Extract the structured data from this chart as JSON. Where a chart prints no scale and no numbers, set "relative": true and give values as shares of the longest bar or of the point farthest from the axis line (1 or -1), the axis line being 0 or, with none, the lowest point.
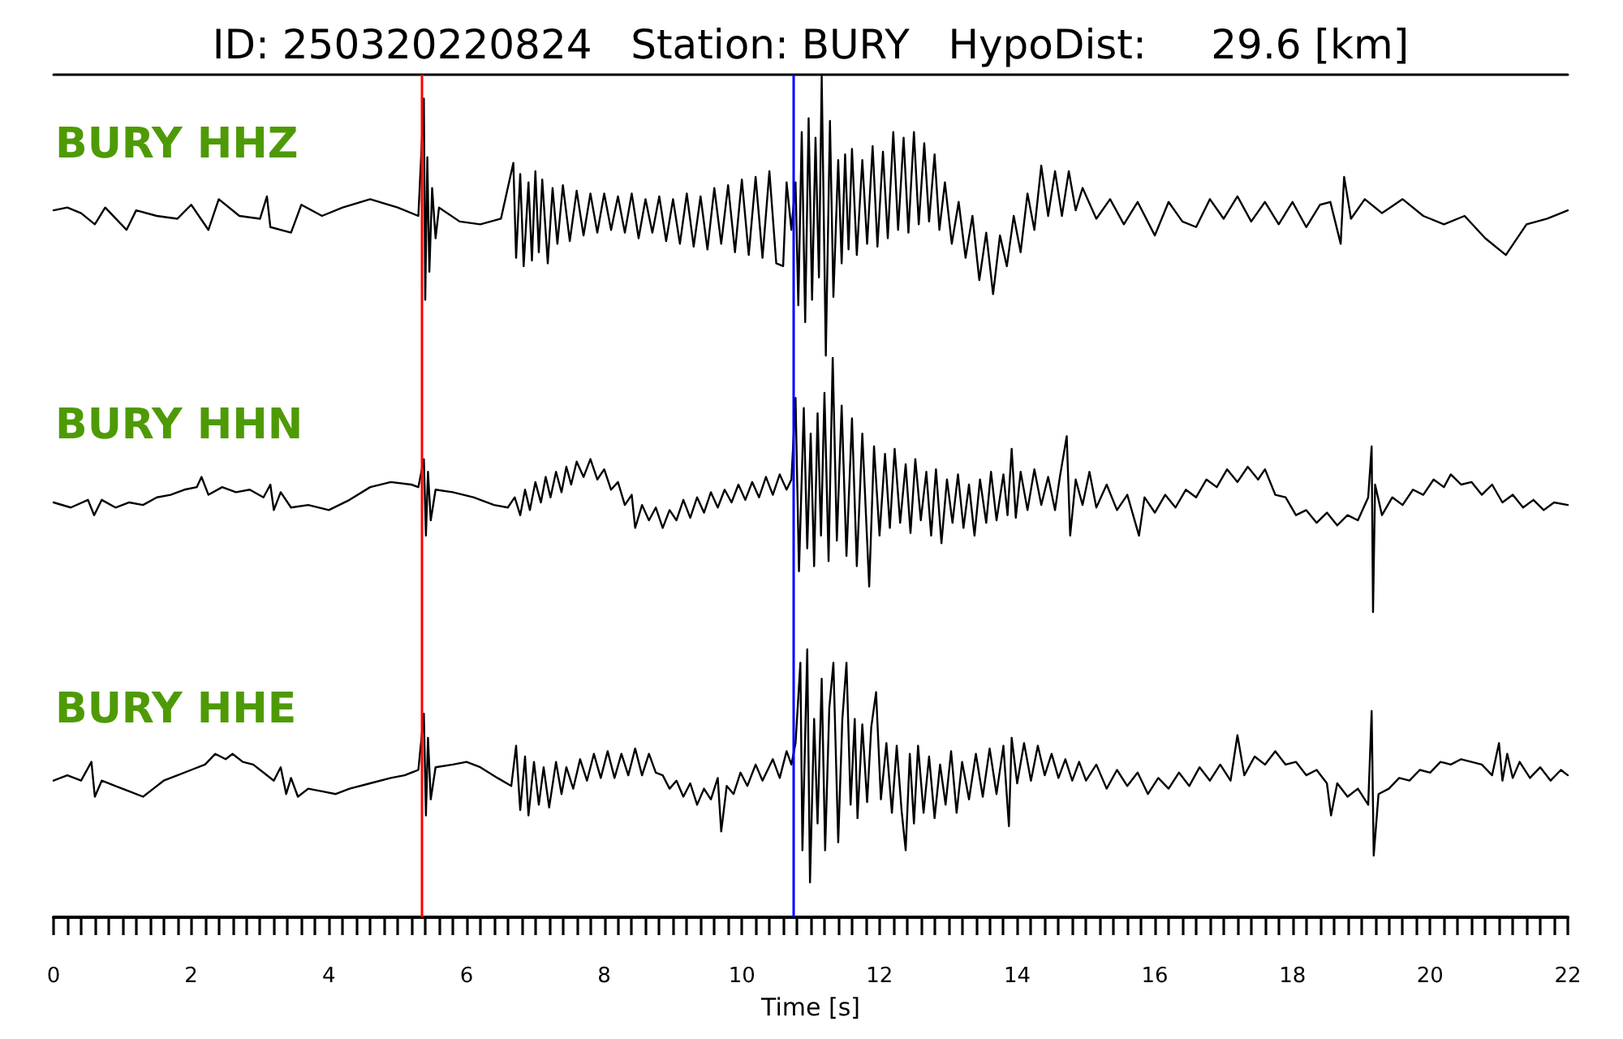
{
  "chart_data": [
    {
      "type": "line",
      "title": "ID: 250320220824   Station: BURY   HypoDist:     29.6 [km]",
      "relative": true,
      "xlim": [
        0,
        22
      ],
      "tick_labels": false,
      "marker": "none",
      "ref_lines": [
        {
          "axis": "x",
          "value": 5.35,
          "color": "#ff0000"
        },
        {
          "axis": "x",
          "value": 10.75,
          "color": "#0000ff"
        }
      ],
      "series": [
        {
          "name": "BURY HHZ",
          "color": "#000000",
          "x": [
            0,
            0.2,
            0.4,
            0.6,
            0.75,
            1.06,
            1.2,
            1.5,
            1.8,
            2,
            2.25,
            2.4,
            2.7,
            3,
            3.1,
            3.15,
            3.45,
            3.6,
            3.9,
            4.2,
            4.6,
            5,
            5.3,
            5.38,
            5.4,
            5.43,
            5.46,
            5.5,
            5.55,
            5.6,
            5.9,
            6.2,
            6.5,
            6.68,
            6.72,
            6.78,
            6.83,
            6.9,
            6.95,
            7,
            7.05,
            7.1,
            7.18,
            7.25,
            7.32,
            7.4,
            7.5,
            7.6,
            7.7,
            7.8,
            7.9,
            8,
            8.1,
            8.2,
            8.3,
            8.4,
            8.5,
            8.6,
            8.7,
            8.8,
            8.9,
            9,
            9.1,
            9.2,
            9.3,
            9.4,
            9.5,
            9.6,
            9.7,
            9.8,
            9.9,
            10,
            10.1,
            10.2,
            10.3,
            10.4,
            10.5,
            10.6,
            10.65,
            10.72,
            10.78,
            10.82,
            10.87,
            10.92,
            10.97,
            11.02,
            11.07,
            11.12,
            11.16,
            11.22,
            11.28,
            11.33,
            11.4,
            11.45,
            11.5,
            11.55,
            11.6,
            11.67,
            11.75,
            11.82,
            11.9,
            11.97,
            12.05,
            12.12,
            12.2,
            12.27,
            12.35,
            12.42,
            12.5,
            12.57,
            12.65,
            12.72,
            12.8,
            12.87,
            12.95,
            13.05,
            13.15,
            13.25,
            13.35,
            13.45,
            13.55,
            13.65,
            13.75,
            13.85,
            13.95,
            14.05,
            14.15,
            14.25,
            14.35,
            14.45,
            14.55,
            14.65,
            14.75,
            14.85,
            14.95,
            15.15,
            15.35,
            15.55,
            15.75,
            16,
            16.2,
            16.4,
            16.6,
            16.8,
            17,
            17.2,
            17.4,
            17.6,
            17.8,
            18,
            18.2,
            18.4,
            18.55,
            18.7,
            18.75,
            18.85,
            19.05,
            19.3,
            19.6,
            19.9,
            20.2,
            20.5,
            20.8,
            21.1,
            21.4,
            21.7,
            22
          ],
          "values": [
            0.52,
            0.53,
            0.51,
            0.47,
            0.53,
            0.45,
            0.52,
            0.5,
            0.49,
            0.54,
            0.45,
            0.56,
            0.5,
            0.49,
            0.57,
            0.46,
            0.44,
            0.54,
            0.5,
            0.53,
            0.56,
            0.53,
            0.5,
            0.92,
            0.2,
            0.71,
            0.3,
            0.6,
            0.42,
            0.53,
            0.48,
            0.47,
            0.49,
            0.69,
            0.35,
            0.65,
            0.32,
            0.62,
            0.34,
            0.66,
            0.37,
            0.63,
            0.33,
            0.6,
            0.4,
            0.61,
            0.41,
            0.59,
            0.43,
            0.58,
            0.44,
            0.58,
            0.45,
            0.57,
            0.44,
            0.58,
            0.42,
            0.56,
            0.44,
            0.57,
            0.41,
            0.56,
            0.4,
            0.58,
            0.39,
            0.57,
            0.38,
            0.6,
            0.4,
            0.61,
            0.37,
            0.63,
            0.36,
            0.64,
            0.35,
            0.66,
            0.33,
            0.32,
            0.62,
            0.45,
            0.62,
            0.18,
            0.8,
            0.12,
            0.85,
            0.2,
            0.78,
            0.28,
            1,
            0,
            0.84,
            0.21,
            0.7,
            0.33,
            0.72,
            0.38,
            0.74,
            0.36,
            0.7,
            0.4,
            0.75,
            0.39,
            0.73,
            0.42,
            0.8,
            0.45,
            0.78,
            0.44,
            0.8,
            0.47,
            0.76,
            0.48,
            0.72,
            0.45,
            0.62,
            0.4,
            0.55,
            0.35,
            0.5,
            0.27,
            0.44,
            0.22,
            0.43,
            0.32,
            0.5,
            0.37,
            0.58,
            0.45,
            0.68,
            0.5,
            0.66,
            0.5,
            0.66,
            0.52,
            0.6,
            0.49,
            0.56,
            0.47,
            0.55,
            0.43,
            0.55,
            0.48,
            0.46,
            0.56,
            0.49,
            0.57,
            0.48,
            0.55,
            0.47,
            0.55,
            0.46,
            0.54,
            0.55,
            0.4,
            0.64,
            0.49,
            0.56,
            0.51,
            0.56,
            0.5,
            0.47,
            0.5,
            0.42,
            0.36,
            0.47,
            0.49,
            0.52
          ]
        }
      ]
    },
    {
      "type": "line",
      "relative": true,
      "xlim": [
        0,
        22
      ],
      "tick_labels": false,
      "marker": "none",
      "ref_lines": [
        {
          "axis": "x",
          "value": 5.35,
          "color": "#ff0000"
        },
        {
          "axis": "x",
          "value": 10.75,
          "color": "#0000ff"
        }
      ],
      "series": [
        {
          "name": "BURY HHN",
          "color": "#000000",
          "x": [
            0,
            0.25,
            0.5,
            0.59,
            0.7,
            0.9,
            1.1,
            1.3,
            1.5,
            1.7,
            1.9,
            2.08,
            2.15,
            2.25,
            2.45,
            2.65,
            2.85,
            3.05,
            3.15,
            3.2,
            3.3,
            3.45,
            3.7,
            4,
            4.3,
            4.6,
            4.9,
            5.2,
            5.3,
            5.38,
            5.41,
            5.44,
            5.48,
            5.55,
            5.8,
            6.1,
            6.4,
            6.6,
            6.7,
            6.78,
            6.85,
            6.92,
            7,
            7.08,
            7.15,
            7.22,
            7.3,
            7.38,
            7.45,
            7.52,
            7.6,
            7.7,
            7.8,
            7.9,
            8,
            8.1,
            8.2,
            8.3,
            8.4,
            8.45,
            8.55,
            8.65,
            8.75,
            8.85,
            8.95,
            9.05,
            9.15,
            9.25,
            9.35,
            9.45,
            9.55,
            9.65,
            9.75,
            9.85,
            9.95,
            10.05,
            10.15,
            10.25,
            10.35,
            10.45,
            10.55,
            10.65,
            10.72,
            10.78,
            10.83,
            10.9,
            10.95,
            11,
            11.05,
            11.1,
            11.15,
            11.2,
            11.26,
            11.32,
            11.38,
            11.45,
            11.52,
            11.6,
            11.67,
            11.75,
            11.85,
            11.92,
            12,
            12.08,
            12.15,
            12.22,
            12.3,
            12.38,
            12.45,
            12.52,
            12.6,
            12.68,
            12.75,
            12.82,
            12.9,
            12.98,
            13.06,
            13.14,
            13.22,
            13.3,
            13.38,
            13.46,
            13.55,
            13.62,
            13.7,
            13.8,
            13.86,
            13.92,
            13.98,
            14.05,
            14.15,
            14.25,
            14.35,
            14.45,
            14.55,
            14.62,
            14.72,
            14.77,
            14.85,
            14.95,
            15.05,
            15.15,
            15.3,
            15.45,
            15.6,
            15.77,
            15.85,
            16,
            16.15,
            16.3,
            16.45,
            16.6,
            16.75,
            16.9,
            17.05,
            17.2,
            17.35,
            17.5,
            17.6,
            17.75,
            17.9,
            18.05,
            18.2,
            18.35,
            18.5,
            18.65,
            18.8,
            18.95,
            19.1,
            19.15,
            19.17,
            19.2,
            19.3,
            19.45,
            19.6,
            19.75,
            19.9,
            20.05,
            20.2,
            20.3,
            20.45,
            20.6,
            20.75,
            20.9,
            21.05,
            21.2,
            21.35,
            21.5,
            21.65,
            21.8,
            22
          ],
          "values": [
            0.43,
            0.41,
            0.44,
            0.38,
            0.44,
            0.41,
            0.43,
            0.42,
            0.45,
            0.46,
            0.48,
            0.49,
            0.53,
            0.46,
            0.49,
            0.47,
            0.48,
            0.45,
            0.5,
            0.4,
            0.47,
            0.41,
            0.42,
            0.4,
            0.44,
            0.49,
            0.51,
            0.5,
            0.49,
            0.6,
            0.3,
            0.55,
            0.36,
            0.48,
            0.47,
            0.45,
            0.42,
            0.41,
            0.45,
            0.38,
            0.48,
            0.4,
            0.51,
            0.43,
            0.53,
            0.45,
            0.55,
            0.47,
            0.57,
            0.5,
            0.59,
            0.53,
            0.6,
            0.52,
            0.56,
            0.48,
            0.51,
            0.42,
            0.46,
            0.33,
            0.42,
            0.36,
            0.41,
            0.33,
            0.4,
            0.36,
            0.44,
            0.37,
            0.45,
            0.39,
            0.47,
            0.41,
            0.48,
            0.43,
            0.5,
            0.44,
            0.51,
            0.45,
            0.53,
            0.46,
            0.54,
            0.48,
            0.52,
            0.84,
            0.16,
            0.8,
            0.25,
            0.7,
            0.18,
            0.78,
            0.3,
            0.86,
            0.2,
            1,
            0.28,
            0.81,
            0.22,
            0.76,
            0.18,
            0.7,
            0.1,
            0.65,
            0.3,
            0.62,
            0.33,
            0.64,
            0.35,
            0.58,
            0.31,
            0.6,
            0.36,
            0.55,
            0.3,
            0.56,
            0.27,
            0.52,
            0.35,
            0.54,
            0.33,
            0.5,
            0.3,
            0.52,
            0.35,
            0.55,
            0.36,
            0.54,
            0.38,
            0.64,
            0.37,
            0.55,
            0.4,
            0.56,
            0.42,
            0.53,
            0.4,
            0.53,
            0.69,
            0.3,
            0.52,
            0.42,
            0.55,
            0.41,
            0.5,
            0.4,
            0.46,
            0.3,
            0.45,
            0.39,
            0.46,
            0.41,
            0.48,
            0.45,
            0.52,
            0.49,
            0.56,
            0.51,
            0.57,
            0.52,
            0.56,
            0.46,
            0.45,
            0.38,
            0.4,
            0.35,
            0.39,
            0.34,
            0.38,
            0.36,
            0.45,
            0.65,
            0,
            0.5,
            0.38,
            0.45,
            0.42,
            0.48,
            0.46,
            0.52,
            0.49,
            0.54,
            0.5,
            0.51,
            0.46,
            0.5,
            0.43,
            0.46,
            0.41,
            0.44,
            0.4,
            0.43,
            0.42
          ]
        }
      ]
    },
    {
      "type": "line",
      "relative": true,
      "xlabel": "Time [s]",
      "xlim": [
        0,
        22
      ],
      "marker": "none",
      "xticks": [
        0,
        {
          "value": 0.2,
          "label": null
        },
        {
          "value": 0.4,
          "label": null
        },
        {
          "value": 0.6,
          "label": null
        },
        {
          "value": 0.8,
          "label": null
        },
        {
          "value": 1,
          "label": null
        },
        {
          "value": 1.2,
          "label": null
        },
        {
          "value": 1.4,
          "label": null
        },
        {
          "value": 1.6,
          "label": null
        },
        {
          "value": 1.8,
          "label": null
        },
        2,
        {
          "value": 2.2,
          "label": null
        },
        {
          "value": 2.4,
          "label": null
        },
        {
          "value": 2.6,
          "label": null
        },
        {
          "value": 2.8,
          "label": null
        },
        {
          "value": 3,
          "label": null
        },
        {
          "value": 3.2,
          "label": null
        },
        {
          "value": 3.4,
          "label": null
        },
        {
          "value": 3.6,
          "label": null
        },
        {
          "value": 3.8,
          "label": null
        },
        4,
        {
          "value": 4.2,
          "label": null
        },
        {
          "value": 4.4,
          "label": null
        },
        {
          "value": 4.6,
          "label": null
        },
        {
          "value": 4.8,
          "label": null
        },
        {
          "value": 5,
          "label": null
        },
        {
          "value": 5.2,
          "label": null
        },
        {
          "value": 5.4,
          "label": null
        },
        {
          "value": 5.6,
          "label": null
        },
        {
          "value": 5.8,
          "label": null
        },
        6,
        {
          "value": 6.2,
          "label": null
        },
        {
          "value": 6.4,
          "label": null
        },
        {
          "value": 6.6,
          "label": null
        },
        {
          "value": 6.8,
          "label": null
        },
        {
          "value": 7,
          "label": null
        },
        {
          "value": 7.2,
          "label": null
        },
        {
          "value": 7.4,
          "label": null
        },
        {
          "value": 7.6,
          "label": null
        },
        {
          "value": 7.8,
          "label": null
        },
        8,
        {
          "value": 8.2,
          "label": null
        },
        {
          "value": 8.4,
          "label": null
        },
        {
          "value": 8.6,
          "label": null
        },
        {
          "value": 8.8,
          "label": null
        },
        {
          "value": 9,
          "label": null
        },
        {
          "value": 9.2,
          "label": null
        },
        {
          "value": 9.4,
          "label": null
        },
        {
          "value": 9.6,
          "label": null
        },
        {
          "value": 9.8,
          "label": null
        },
        10,
        {
          "value": 10.2,
          "label": null
        },
        {
          "value": 10.4,
          "label": null
        },
        {
          "value": 10.6,
          "label": null
        },
        {
          "value": 10.8,
          "label": null
        },
        {
          "value": 11,
          "label": null
        },
        {
          "value": 11.2,
          "label": null
        },
        {
          "value": 11.4,
          "label": null
        },
        {
          "value": 11.6,
          "label": null
        },
        {
          "value": 11.8,
          "label": null
        },
        12,
        {
          "value": 12.2,
          "label": null
        },
        {
          "value": 12.4,
          "label": null
        },
        {
          "value": 12.6,
          "label": null
        },
        {
          "value": 12.8,
          "label": null
        },
        {
          "value": 13,
          "label": null
        },
        {
          "value": 13.2,
          "label": null
        },
        {
          "value": 13.4,
          "label": null
        },
        {
          "value": 13.6,
          "label": null
        },
        {
          "value": 13.8,
          "label": null
        },
        14,
        {
          "value": 14.2,
          "label": null
        },
        {
          "value": 14.4,
          "label": null
        },
        {
          "value": 14.6,
          "label": null
        },
        {
          "value": 14.8,
          "label": null
        },
        {
          "value": 15,
          "label": null
        },
        {
          "value": 15.2,
          "label": null
        },
        {
          "value": 15.4,
          "label": null
        },
        {
          "value": 15.6,
          "label": null
        },
        {
          "value": 15.8,
          "label": null
        },
        16,
        {
          "value": 16.2,
          "label": null
        },
        {
          "value": 16.4,
          "label": null
        },
        {
          "value": 16.6,
          "label": null
        },
        {
          "value": 16.8,
          "label": null
        },
        {
          "value": 17,
          "label": null
        },
        {
          "value": 17.2,
          "label": null
        },
        {
          "value": 17.4,
          "label": null
        },
        {
          "value": 17.6,
          "label": null
        },
        {
          "value": 17.8,
          "label": null
        },
        18,
        {
          "value": 18.2,
          "label": null
        },
        {
          "value": 18.4,
          "label": null
        },
        {
          "value": 18.6,
          "label": null
        },
        {
          "value": 18.8,
          "label": null
        },
        {
          "value": 19,
          "label": null
        },
        {
          "value": 19.2,
          "label": null
        },
        {
          "value": 19.4,
          "label": null
        },
        {
          "value": 19.6,
          "label": null
        },
        {
          "value": 19.8,
          "label": null
        },
        20,
        {
          "value": 20.2,
          "label": null
        },
        {
          "value": 20.4,
          "label": null
        },
        {
          "value": 20.6,
          "label": null
        },
        {
          "value": 20.8,
          "label": null
        },
        {
          "value": 21,
          "label": null
        },
        {
          "value": 21.2,
          "label": null
        },
        {
          "value": 21.4,
          "label": null
        },
        {
          "value": 21.6,
          "label": null
        },
        {
          "value": 21.8,
          "label": null
        },
        22
      ],
      "ref_lines": [
        {
          "axis": "x",
          "value": 5.35,
          "color": "#ff0000"
        },
        {
          "axis": "x",
          "value": 10.75,
          "color": "#0000ff"
        }
      ],
      "series": [
        {
          "name": "BURY HHE",
          "color": "#000000",
          "x": [
            0,
            0.2,
            0.4,
            0.55,
            0.6,
            0.7,
            0.9,
            1.1,
            1.3,
            1.45,
            1.6,
            1.8,
            2,
            2.2,
            2.35,
            2.5,
            2.6,
            2.75,
            2.9,
            3.05,
            3.2,
            3.3,
            3.38,
            3.45,
            3.55,
            3.7,
            3.9,
            4.1,
            4.3,
            4.6,
            4.9,
            5.1,
            5.3,
            5.38,
            5.41,
            5.44,
            5.48,
            5.55,
            5.8,
            6,
            6.2,
            6.45,
            6.65,
            6.72,
            6.78,
            6.85,
            6.9,
            6.98,
            7.05,
            7.12,
            7.2,
            7.3,
            7.38,
            7.45,
            7.55,
            7.65,
            7.75,
            7.85,
            7.95,
            8.05,
            8.15,
            8.25,
            8.35,
            8.45,
            8.55,
            8.65,
            8.75,
            8.85,
            8.95,
            9.05,
            9.15,
            9.25,
            9.35,
            9.45,
            9.55,
            9.65,
            9.7,
            9.78,
            9.88,
            9.98,
            10.08,
            10.2,
            10.3,
            10.45,
            10.55,
            10.65,
            10.72,
            10.78,
            10.85,
            10.88,
            10.95,
            10.99,
            11.05,
            11.1,
            11.16,
            11.21,
            11.27,
            11.33,
            11.4,
            11.46,
            11.52,
            11.58,
            11.64,
            11.68,
            11.75,
            11.82,
            11.88,
            11.95,
            12.02,
            12.1,
            12.18,
            12.25,
            12.32,
            12.38,
            12.44,
            12.5,
            12.56,
            12.64,
            12.72,
            12.8,
            12.88,
            12.96,
            13.04,
            13.12,
            13.2,
            13.3,
            13.4,
            13.5,
            13.6,
            13.7,
            13.8,
            13.88,
            13.92,
            14,
            14.1,
            14.2,
            14.3,
            14.4,
            14.5,
            14.6,
            14.7,
            14.8,
            14.9,
            15,
            15.15,
            15.3,
            15.45,
            15.6,
            15.75,
            15.9,
            16.05,
            16.2,
            16.35,
            16.5,
            16.65,
            16.8,
            16.95,
            17.1,
            17.2,
            17.3,
            17.45,
            17.6,
            17.75,
            17.9,
            18.05,
            18.2,
            18.35,
            18.5,
            18.56,
            18.65,
            18.8,
            18.95,
            19.1,
            19.15,
            19.18,
            19.25,
            19.4,
            19.55,
            19.7,
            19.85,
            20,
            20.15,
            20.3,
            20.45,
            20.6,
            20.75,
            20.9,
            21,
            21.05,
            21.12,
            21.2,
            21.3,
            21.45,
            21.6,
            21.75,
            21.9,
            22
          ],
          "values": [
            0.51,
            0.53,
            0.51,
            0.58,
            0.45,
            0.51,
            0.49,
            0.47,
            0.45,
            0.48,
            0.51,
            0.53,
            0.55,
            0.57,
            0.61,
            0.59,
            0.61,
            0.58,
            0.57,
            0.54,
            0.51,
            0.56,
            0.46,
            0.52,
            0.45,
            0.48,
            0.47,
            0.46,
            0.48,
            0.5,
            0.52,
            0.53,
            0.55,
            0.76,
            0.38,
            0.67,
            0.44,
            0.56,
            0.57,
            0.58,
            0.56,
            0.52,
            0.49,
            0.64,
            0.4,
            0.6,
            0.38,
            0.58,
            0.42,
            0.56,
            0.41,
            0.58,
            0.46,
            0.56,
            0.48,
            0.59,
            0.51,
            0.61,
            0.52,
            0.62,
            0.52,
            0.61,
            0.53,
            0.63,
            0.53,
            0.61,
            0.54,
            0.53,
            0.48,
            0.51,
            0.45,
            0.5,
            0.42,
            0.48,
            0.44,
            0.52,
            0.32,
            0.49,
            0.46,
            0.54,
            0.49,
            0.57,
            0.51,
            0.59,
            0.52,
            0.62,
            0.57,
            0.65,
            0.95,
            0.25,
            1,
            0.13,
            0.74,
            0.35,
            0.89,
            0.25,
            0.78,
            0.95,
            0.28,
            0.74,
            0.95,
            0.42,
            0.74,
            0.37,
            0.72,
            0.43,
            0.71,
            0.84,
            0.44,
            0.65,
            0.39,
            0.64,
            0.4,
            0.25,
            0.61,
            0.35,
            0.64,
            0.39,
            0.6,
            0.37,
            0.57,
            0.42,
            0.62,
            0.39,
            0.58,
            0.44,
            0.61,
            0.45,
            0.63,
            0.46,
            0.64,
            0.34,
            0.67,
            0.5,
            0.65,
            0.51,
            0.64,
            0.53,
            0.61,
            0.52,
            0.59,
            0.51,
            0.58,
            0.51,
            0.57,
            0.48,
            0.55,
            0.49,
            0.54,
            0.46,
            0.52,
            0.48,
            0.54,
            0.49,
            0.56,
            0.51,
            0.57,
            0.51,
            0.68,
            0.53,
            0.6,
            0.57,
            0.62,
            0.57,
            0.58,
            0.53,
            0.55,
            0.5,
            0.38,
            0.5,
            0.45,
            0.48,
            0.42,
            0.77,
            0.23,
            0.46,
            0.48,
            0.52,
            0.51,
            0.55,
            0.54,
            0.58,
            0.57,
            0.59,
            0.58,
            0.57,
            0.53,
            0.65,
            0.51,
            0.61,
            0.52,
            0.58,
            0.52,
            0.56,
            0.51,
            0.55,
            0.53
          ]
        }
      ]
    }
  ]
}
